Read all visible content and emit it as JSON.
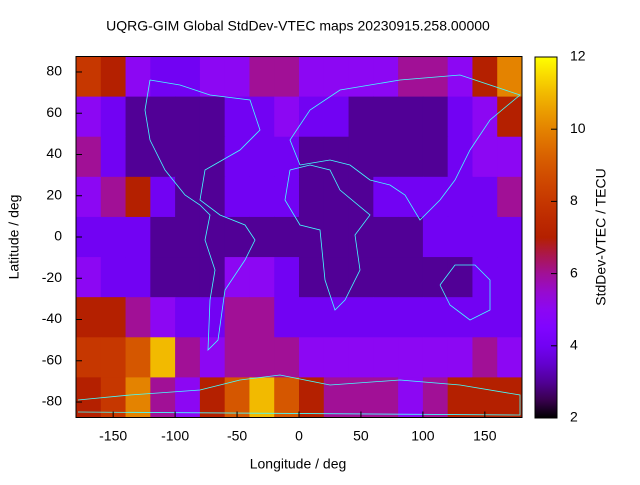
{
  "chart_data": {
    "type": "heatmap",
    "title": "UQRG-GIM Global StdDev-VTEC maps 20230915.258.00000",
    "x_label": "Longitude / deg",
    "y_label": "Latitude / deg",
    "colorbar_label": "StdDev-VTEC / TECU",
    "xlim": [
      -180,
      180
    ],
    "ylim": [
      -87.5,
      87.5
    ],
    "xticks": [
      -150,
      -100,
      -50,
      0,
      50,
      100,
      150
    ],
    "yticks": [
      -80,
      -60,
      -40,
      -20,
      0,
      20,
      40,
      60,
      80
    ],
    "clim": [
      2,
      12
    ],
    "cticks": [
      2,
      4,
      6,
      8,
      10,
      12
    ],
    "values": [
      [
        8,
        7,
        5,
        4,
        4,
        5,
        5,
        6,
        6,
        5,
        5,
        5,
        5,
        6,
        6,
        5,
        7,
        10
      ],
      [
        5,
        4,
        3,
        3,
        3,
        3,
        4,
        4,
        5,
        4,
        4,
        3,
        3,
        3,
        3,
        4,
        5,
        7
      ],
      [
        6,
        4,
        3,
        3,
        3,
        3,
        4,
        4,
        4,
        3,
        3,
        3,
        3,
        3,
        3,
        4,
        5,
        5
      ],
      [
        5,
        6,
        7,
        4,
        3,
        3,
        4,
        4,
        4,
        3,
        3,
        3,
        4,
        4,
        4,
        4,
        4,
        6
      ],
      [
        4,
        4,
        4,
        3,
        3,
        3,
        3,
        3,
        3,
        3,
        3,
        3,
        3,
        3,
        4,
        4,
        4,
        4
      ],
      [
        5,
        4,
        4,
        3,
        3,
        3,
        5,
        5,
        4,
        3,
        3,
        3,
        3,
        3,
        3,
        3,
        4,
        4
      ],
      [
        7,
        7,
        6,
        5,
        4,
        4,
        6,
        6,
        4,
        4,
        4,
        4,
        4,
        4,
        4,
        4,
        4,
        4
      ],
      [
        8,
        8,
        9,
        11,
        6,
        5,
        6,
        6,
        6,
        5,
        5,
        5,
        5,
        5,
        5,
        5,
        6,
        5
      ],
      [
        7,
        8,
        10,
        6,
        5,
        7,
        9,
        11,
        9,
        7,
        6,
        6,
        6,
        5,
        6,
        7,
        7,
        7
      ]
    ]
  }
}
